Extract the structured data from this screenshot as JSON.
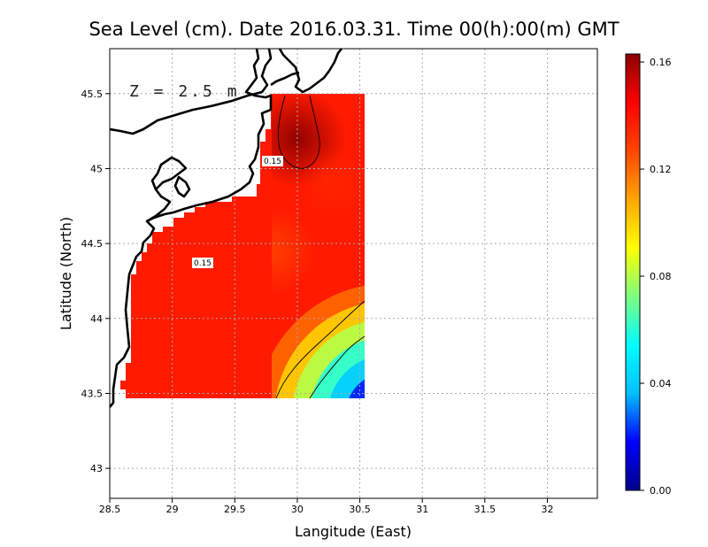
{
  "title": "Sea Level (cm). Date 2016.03.31. Time 00(h):00(m) GMT",
  "depth_label": "Z = 2.5 m",
  "x_axis": {
    "label": "Langitude (East)",
    "ticks": [
      "28.5",
      "29",
      "29.5",
      "30",
      "30.5",
      "31",
      "31.5",
      "32"
    ],
    "range": [
      28.5,
      32.4
    ]
  },
  "y_axis": {
    "label": "Latitude (North)",
    "ticks": [
      "43",
      "43.5",
      "44",
      "44.5",
      "45",
      "45.5"
    ],
    "range": [
      42.8,
      45.8
    ]
  },
  "colorbar": {
    "ticks": [
      "0.00",
      "0.04",
      "0.08",
      "0.12",
      "0.16"
    ],
    "range": [
      0.0,
      0.163
    ],
    "colors": [
      "#00008b",
      "#0000ff",
      "#00bfff",
      "#00ffff",
      "#7fff7f",
      "#ffff00",
      "#ffa500",
      "#ff4500",
      "#ff0000",
      "#8b0000"
    ]
  },
  "contour_labels": [
    {
      "text": "0.15",
      "lon": 29.75,
      "lat": 45.06
    },
    {
      "text": "0.15",
      "lon": 29.21,
      "lat": 44.37
    }
  ],
  "chart_data": {
    "type": "heatmap",
    "title": "Sea Level (cm). Date 2016.03.31. Time 00(h):00(m) GMT",
    "xlabel": "Langitude (East)",
    "ylabel": "Latitude (North)",
    "xlim": [
      28.5,
      32.4
    ],
    "ylim": [
      42.8,
      45.8
    ],
    "grid": true,
    "value_range": [
      0.0,
      0.163
    ],
    "contour_levels": [
      0.05,
      0.1,
      0.15
    ],
    "field_extent": {
      "lon": [
        28.6,
        30.55
      ],
      "lat": [
        43.5,
        45.5
      ]
    },
    "features": [
      {
        "kind": "max",
        "lon": 30.0,
        "lat": 45.2,
        "value": 0.162
      },
      {
        "kind": "max",
        "lon": 29.3,
        "lat": 44.4,
        "value": 0.152
      },
      {
        "kind": "min",
        "lon": 30.5,
        "lat": 43.55,
        "value": 0.005
      }
    ]
  }
}
